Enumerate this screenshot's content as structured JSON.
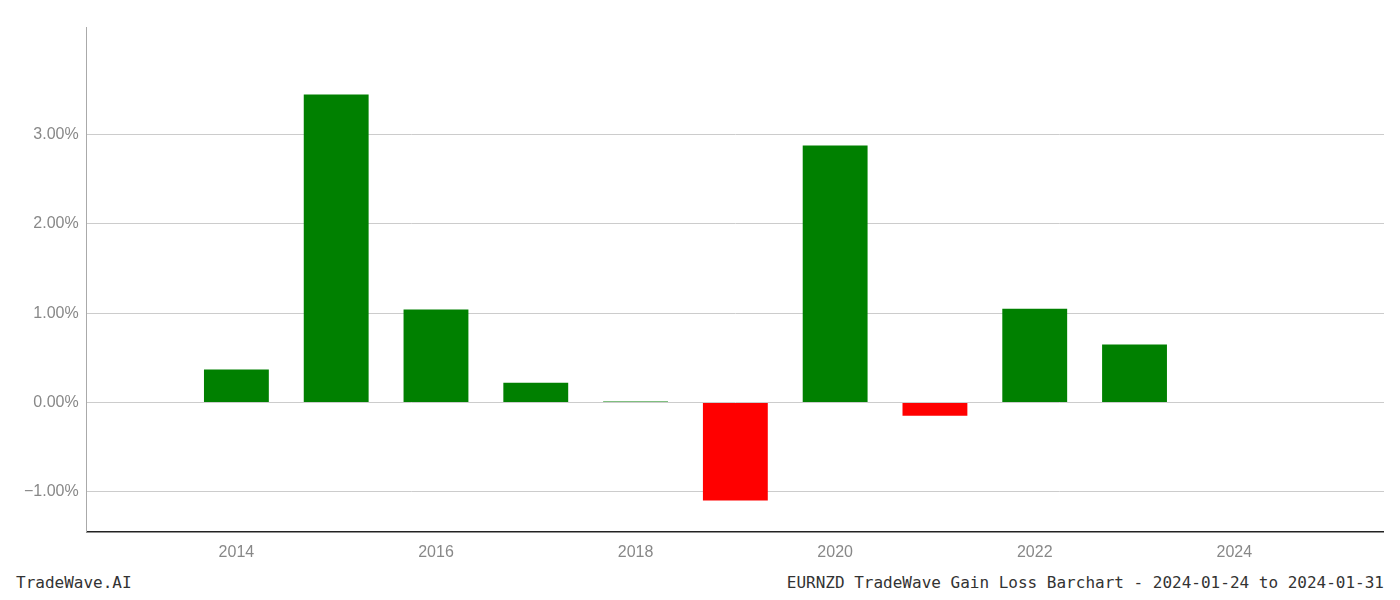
{
  "chart_data": {
    "type": "bar",
    "title": "EURNZD TradeWave Gain Loss Barchart - 2024-01-24 to 2024-01-31",
    "annotations": [
      "TradeWave.AI"
    ],
    "x": [
      2014,
      2015,
      2016,
      2017,
      2018,
      2019,
      2020,
      2021,
      2022,
      2023
    ],
    "values": [
      0.0037,
      0.0345,
      0.0104,
      0.0022,
      0.0001,
      -0.011,
      0.0288,
      -0.0015,
      0.0105,
      0.0065
    ],
    "colors": [
      "#008000",
      "#008000",
      "#008000",
      "#008000",
      "#008000",
      "#ff0000",
      "#008000",
      "#ff0000",
      "#008000",
      "#008000"
    ],
    "xlim": [
      2012.5,
      2025.5
    ],
    "xticks": [
      2014,
      2016,
      2018,
      2020,
      2022,
      2024
    ],
    "ylim": [
      -0.0145,
      0.042
    ],
    "yticks": [
      {
        "value": -0.01,
        "label": "−1.00%"
      },
      {
        "value": 0.0,
        "label": "0.00%"
      },
      {
        "value": 0.01,
        "label": "1.00%"
      },
      {
        "value": 0.02,
        "label": "2.00%"
      },
      {
        "value": 0.03,
        "label": "3.00%"
      }
    ],
    "grid": true
  }
}
